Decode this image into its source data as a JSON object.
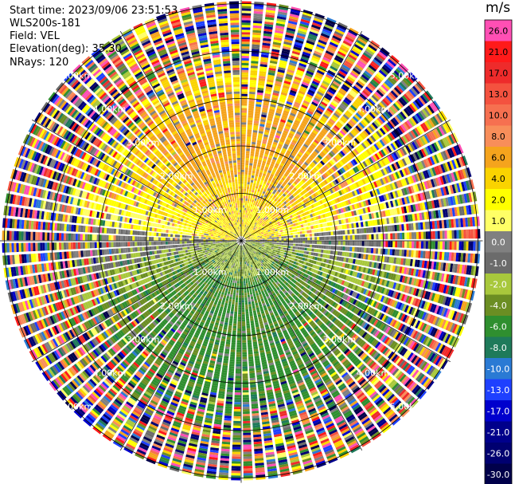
{
  "header": {
    "start_time": "Start time: 2023/09/06 23:51:53",
    "instrument": "WLS200s-181",
    "field": "Field: VEL",
    "elevation": "Elevation(deg): 35.30",
    "nrays": "NRays: 120"
  },
  "colorbar": {
    "unit": "m/s",
    "bins": [
      {
        "label": "26.0",
        "color": "#ff4fb4"
      },
      {
        "label": "21.0",
        "color": "#ff1a1a"
      },
      {
        "label": "17.0",
        "color": "#ee2b2b"
      },
      {
        "label": "13.0",
        "color": "#f4523f"
      },
      {
        "label": "10.0",
        "color": "#f67050"
      },
      {
        "label": "8.0",
        "color": "#f88e5a"
      },
      {
        "label": "6.0",
        "color": "#f5a41d"
      },
      {
        "label": "4.0",
        "color": "#fad300"
      },
      {
        "label": "2.0",
        "color": "#ffff00"
      },
      {
        "label": "1.0",
        "color": "#ffff66"
      },
      {
        "label": "0.0",
        "color": "#808080"
      },
      {
        "label": "-1.0",
        "color": "#6b6b6b"
      },
      {
        "label": "-2.0",
        "color": "#a8c83c"
      },
      {
        "label": "-4.0",
        "color": "#6b8e23"
      },
      {
        "label": "-6.0",
        "color": "#2f8f2f"
      },
      {
        "label": "-8.0",
        "color": "#1e7a5a"
      },
      {
        "label": "-10.0",
        "color": "#2a7ad4"
      },
      {
        "label": "-13.0",
        "color": "#1e40ff"
      },
      {
        "label": "-17.0",
        "color": "#0000cd"
      },
      {
        "label": "-21.0",
        "color": "#00008b"
      },
      {
        "label": "-26.0",
        "color": "#000070"
      },
      {
        "label": "-30.0",
        "color": "#00004a"
      }
    ]
  },
  "chart_data": {
    "type": "ppi",
    "field": "VEL",
    "units": "m/s",
    "nrays": 120,
    "range_rings_km": [
      1.0,
      2.0,
      3.0,
      4.0,
      5.0
    ],
    "ring_labels": [
      "1.00km",
      "2.00km",
      "3.00km",
      "4.00km",
      "5.00km"
    ],
    "spoke_angles_deg": [
      0,
      30,
      60,
      90,
      120,
      150,
      180,
      210,
      240,
      270,
      300,
      330
    ],
    "max_range_km": 5.1,
    "velocity_pattern": {
      "north_sector": "positive (2 to 8 m/s), orange/yellow",
      "south_sector": "negative (-2 to -8 m/s), green",
      "east_west_axis": "near zero (gray)",
      "outer_ranges": "noise (all bins)"
    }
  }
}
